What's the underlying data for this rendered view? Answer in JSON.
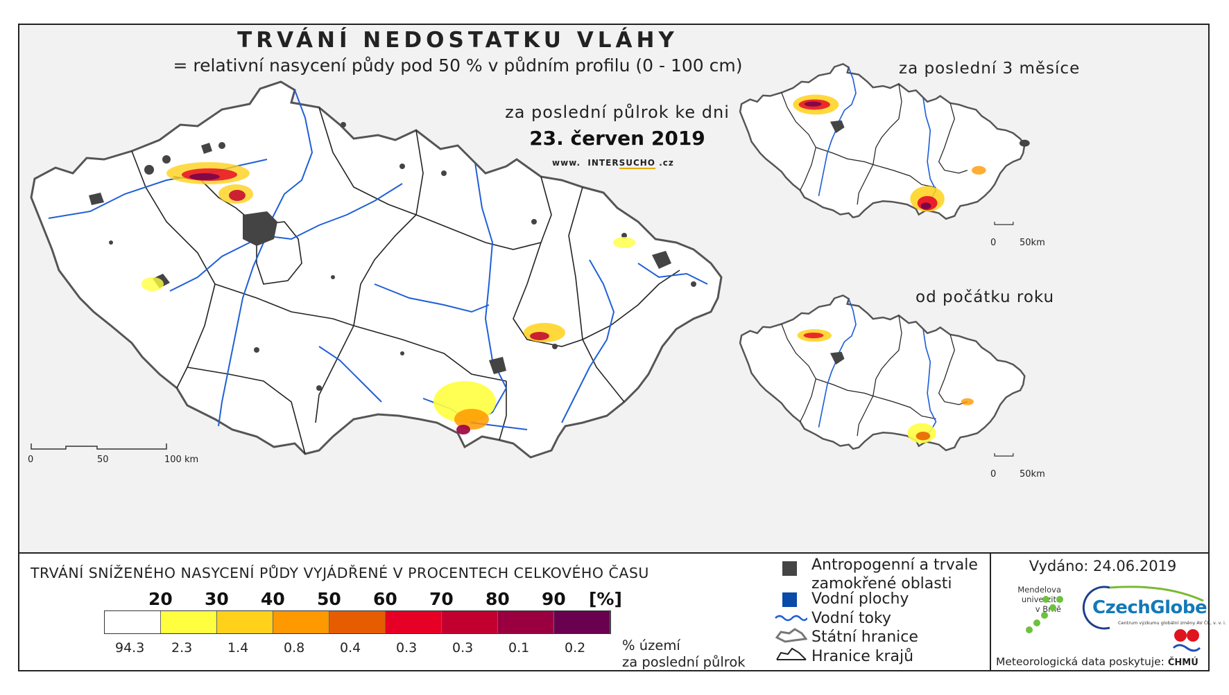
{
  "title": "TRVÁNÍ NEDOSTATKU VLÁHY",
  "subtitle": "= relativní nasycení půdy pod 50 % v půdním profilu (0 - 100 cm)",
  "main_map": {
    "period": "za poslední půlrok ke dni",
    "date": "23. červen 2019",
    "website_prefix": "www.",
    "website_inter": "INTER",
    "website_sucho": "SUCHO",
    "website_suffix": ".cz",
    "scale": {
      "s0": "0",
      "s50": "50",
      "s100": "100 km"
    }
  },
  "inset_3m": {
    "title": "za poslední 3 měsíce",
    "scale": {
      "s0": "0",
      "s50": "50km"
    }
  },
  "inset_year": {
    "title": "od počátku roku",
    "scale": {
      "s0": "0",
      "s50": "50km"
    }
  },
  "legend": {
    "title": "TRVÁNÍ SNÍŽENÉHO NASYCENÍ PŮDY VYJÁDŘENÉ V PROCENTECH CELKOVÉHO ČASU",
    "thresholds": [
      "20",
      "30",
      "40",
      "50",
      "60",
      "70",
      "80",
      "90"
    ],
    "unit": "[%]",
    "colors": [
      "#ffffff",
      "#ffff40",
      "#ffd11a",
      "#ff9900",
      "#e65c00",
      "#e60026",
      "#c20030",
      "#9a0040",
      "#6a0050"
    ],
    "percentages": [
      "94.3",
      "2.3",
      "1.4",
      "0.8",
      "0.4",
      "0.3",
      "0.3",
      "0.1",
      "0.2"
    ],
    "note_line1": "% území",
    "note_line2": "za poslední půlrok"
  },
  "symbols": {
    "anthropogenic_line1": "Antropogenní a trvale",
    "anthropogenic_line2": "zamokřené oblasti",
    "water_bodies": "Vodní plochy",
    "rivers": "Vodní toky",
    "state_border": "Státní hranice",
    "regional_border": "Hranice krajů",
    "colors": {
      "anthropogenic": "#444444",
      "water": "#0a4aa8",
      "river": "#1e5fd8"
    }
  },
  "issued": "Vydáno: 24.06.2019",
  "logos": {
    "mendel_line1": "Mendelova",
    "mendel_line2": "univerzita",
    "mendel_line3": "v Brně",
    "czechglobe": "CzechGlobe",
    "czechglobe_sub": "Centrum výzkumu globální změny AV ČR, v. v. i.",
    "chmu": "ČHMÚ"
  },
  "meteo_provider": "Meteorologická data poskytuje:"
}
